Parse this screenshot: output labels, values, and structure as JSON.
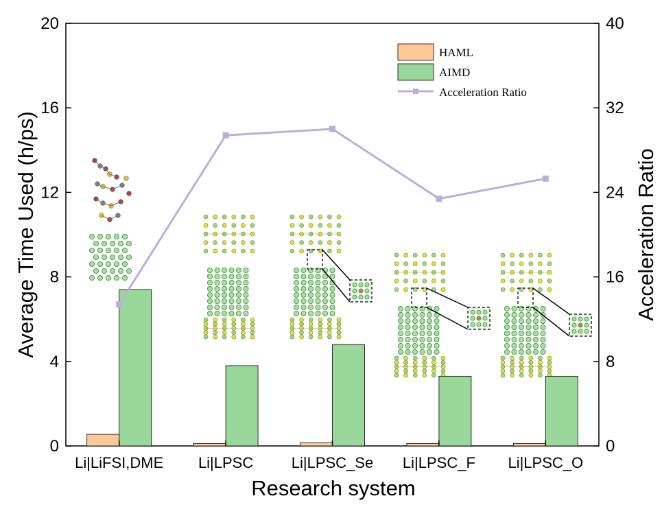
{
  "chart_data": {
    "type": "bar",
    "categories": [
      "Li|LiFSI,DME",
      "Li|LPSC",
      "Li|LPSC_Se",
      "Li|LPSC_F",
      "Li|LPSC_O"
    ],
    "series": [
      {
        "name": "HAML",
        "axis": "left",
        "color": "#FFC899",
        "values": [
          0.55,
          0.12,
          0.15,
          0.12,
          0.12
        ]
      },
      {
        "name": "AIMD",
        "axis": "left",
        "color": "#9AD79A",
        "values": [
          7.4,
          3.8,
          4.8,
          3.3,
          3.3
        ]
      },
      {
        "name": "Acceleration Ratio",
        "axis": "right",
        "type": "line",
        "color": "#BBAED8",
        "values": [
          13.4,
          29.4,
          30.0,
          23.4,
          25.3
        ]
      }
    ],
    "xlabel": "Research system",
    "ylabel": "Average Time Used (h/ps)",
    "y2label": "Acceleration Ratio",
    "ylim": [
      0,
      20
    ],
    "y2lim": [
      0,
      40
    ],
    "yticks": [
      "0",
      "4",
      "8",
      "12",
      "16",
      "20"
    ],
    "y2ticks": [
      "0",
      "8",
      "16",
      "24",
      "32",
      "40"
    ],
    "legend_position": "top-right",
    "grid": false
  },
  "insets": [
    {
      "name": "molecule-structure-icon"
    },
    {
      "name": "lpsc-crystal-structure-icon"
    },
    {
      "name": "lpsc-se-crystal-structure-icon"
    },
    {
      "name": "lpsc-f-crystal-structure-icon"
    },
    {
      "name": "lpsc-o-crystal-structure-icon"
    }
  ]
}
